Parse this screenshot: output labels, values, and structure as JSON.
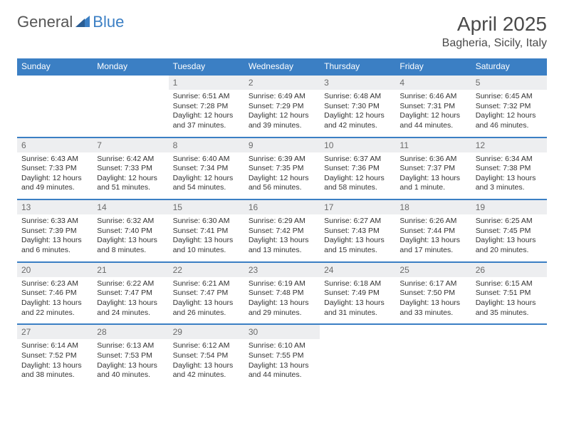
{
  "brand": {
    "part1": "General",
    "part2": "Blue"
  },
  "title": "April 2025",
  "location": "Bagheria, Sicily, Italy",
  "colors": {
    "header_bg": "#3b7fc4",
    "header_text": "#ffffff",
    "daynum_bg": "#edeef0",
    "daynum_text": "#6b6b6b",
    "body_text": "#333333",
    "border": "#3b7fc4",
    "page_bg": "#ffffff"
  },
  "days_of_week": [
    "Sunday",
    "Monday",
    "Tuesday",
    "Wednesday",
    "Thursday",
    "Friday",
    "Saturday"
  ],
  "weeks": [
    [
      null,
      null,
      {
        "n": "1",
        "sr": "Sunrise: 6:51 AM",
        "ss": "Sunset: 7:28 PM",
        "dl": "Daylight: 12 hours and 37 minutes."
      },
      {
        "n": "2",
        "sr": "Sunrise: 6:49 AM",
        "ss": "Sunset: 7:29 PM",
        "dl": "Daylight: 12 hours and 39 minutes."
      },
      {
        "n": "3",
        "sr": "Sunrise: 6:48 AM",
        "ss": "Sunset: 7:30 PM",
        "dl": "Daylight: 12 hours and 42 minutes."
      },
      {
        "n": "4",
        "sr": "Sunrise: 6:46 AM",
        "ss": "Sunset: 7:31 PM",
        "dl": "Daylight: 12 hours and 44 minutes."
      },
      {
        "n": "5",
        "sr": "Sunrise: 6:45 AM",
        "ss": "Sunset: 7:32 PM",
        "dl": "Daylight: 12 hours and 46 minutes."
      }
    ],
    [
      {
        "n": "6",
        "sr": "Sunrise: 6:43 AM",
        "ss": "Sunset: 7:33 PM",
        "dl": "Daylight: 12 hours and 49 minutes."
      },
      {
        "n": "7",
        "sr": "Sunrise: 6:42 AM",
        "ss": "Sunset: 7:33 PM",
        "dl": "Daylight: 12 hours and 51 minutes."
      },
      {
        "n": "8",
        "sr": "Sunrise: 6:40 AM",
        "ss": "Sunset: 7:34 PM",
        "dl": "Daylight: 12 hours and 54 minutes."
      },
      {
        "n": "9",
        "sr": "Sunrise: 6:39 AM",
        "ss": "Sunset: 7:35 PM",
        "dl": "Daylight: 12 hours and 56 minutes."
      },
      {
        "n": "10",
        "sr": "Sunrise: 6:37 AM",
        "ss": "Sunset: 7:36 PM",
        "dl": "Daylight: 12 hours and 58 minutes."
      },
      {
        "n": "11",
        "sr": "Sunrise: 6:36 AM",
        "ss": "Sunset: 7:37 PM",
        "dl": "Daylight: 13 hours and 1 minute."
      },
      {
        "n": "12",
        "sr": "Sunrise: 6:34 AM",
        "ss": "Sunset: 7:38 PM",
        "dl": "Daylight: 13 hours and 3 minutes."
      }
    ],
    [
      {
        "n": "13",
        "sr": "Sunrise: 6:33 AM",
        "ss": "Sunset: 7:39 PM",
        "dl": "Daylight: 13 hours and 6 minutes."
      },
      {
        "n": "14",
        "sr": "Sunrise: 6:32 AM",
        "ss": "Sunset: 7:40 PM",
        "dl": "Daylight: 13 hours and 8 minutes."
      },
      {
        "n": "15",
        "sr": "Sunrise: 6:30 AM",
        "ss": "Sunset: 7:41 PM",
        "dl": "Daylight: 13 hours and 10 minutes."
      },
      {
        "n": "16",
        "sr": "Sunrise: 6:29 AM",
        "ss": "Sunset: 7:42 PM",
        "dl": "Daylight: 13 hours and 13 minutes."
      },
      {
        "n": "17",
        "sr": "Sunrise: 6:27 AM",
        "ss": "Sunset: 7:43 PM",
        "dl": "Daylight: 13 hours and 15 minutes."
      },
      {
        "n": "18",
        "sr": "Sunrise: 6:26 AM",
        "ss": "Sunset: 7:44 PM",
        "dl": "Daylight: 13 hours and 17 minutes."
      },
      {
        "n": "19",
        "sr": "Sunrise: 6:25 AM",
        "ss": "Sunset: 7:45 PM",
        "dl": "Daylight: 13 hours and 20 minutes."
      }
    ],
    [
      {
        "n": "20",
        "sr": "Sunrise: 6:23 AM",
        "ss": "Sunset: 7:46 PM",
        "dl": "Daylight: 13 hours and 22 minutes."
      },
      {
        "n": "21",
        "sr": "Sunrise: 6:22 AM",
        "ss": "Sunset: 7:47 PM",
        "dl": "Daylight: 13 hours and 24 minutes."
      },
      {
        "n": "22",
        "sr": "Sunrise: 6:21 AM",
        "ss": "Sunset: 7:47 PM",
        "dl": "Daylight: 13 hours and 26 minutes."
      },
      {
        "n": "23",
        "sr": "Sunrise: 6:19 AM",
        "ss": "Sunset: 7:48 PM",
        "dl": "Daylight: 13 hours and 29 minutes."
      },
      {
        "n": "24",
        "sr": "Sunrise: 6:18 AM",
        "ss": "Sunset: 7:49 PM",
        "dl": "Daylight: 13 hours and 31 minutes."
      },
      {
        "n": "25",
        "sr": "Sunrise: 6:17 AM",
        "ss": "Sunset: 7:50 PM",
        "dl": "Daylight: 13 hours and 33 minutes."
      },
      {
        "n": "26",
        "sr": "Sunrise: 6:15 AM",
        "ss": "Sunset: 7:51 PM",
        "dl": "Daylight: 13 hours and 35 minutes."
      }
    ],
    [
      {
        "n": "27",
        "sr": "Sunrise: 6:14 AM",
        "ss": "Sunset: 7:52 PM",
        "dl": "Daylight: 13 hours and 38 minutes."
      },
      {
        "n": "28",
        "sr": "Sunrise: 6:13 AM",
        "ss": "Sunset: 7:53 PM",
        "dl": "Daylight: 13 hours and 40 minutes."
      },
      {
        "n": "29",
        "sr": "Sunrise: 6:12 AM",
        "ss": "Sunset: 7:54 PM",
        "dl": "Daylight: 13 hours and 42 minutes."
      },
      {
        "n": "30",
        "sr": "Sunrise: 6:10 AM",
        "ss": "Sunset: 7:55 PM",
        "dl": "Daylight: 13 hours and 44 minutes."
      },
      null,
      null,
      null
    ]
  ]
}
